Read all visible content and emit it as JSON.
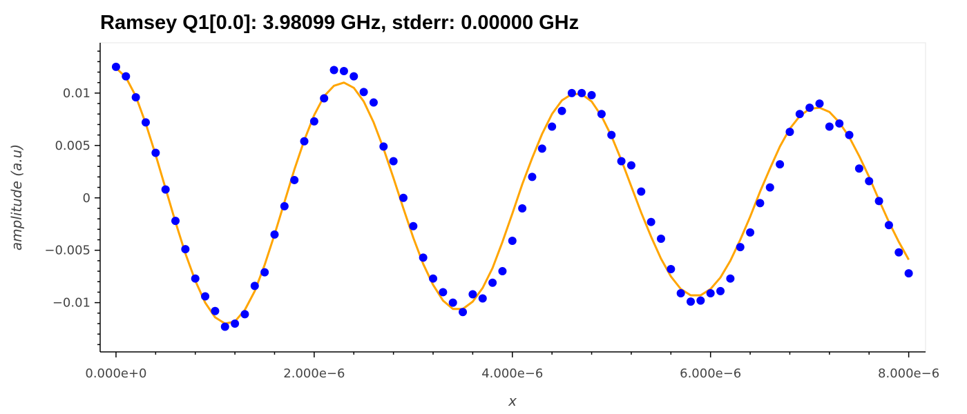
{
  "chart_data": {
    "type": "scatter",
    "title": "Ramsey Q1[0.0]: 3.98099 GHz, stderr: 0.00000 GHz",
    "xlabel": "x",
    "ylabel": "amplitude (a.u)",
    "xlim": [
      -1.6e-07,
      8.17e-06
    ],
    "ylim": [
      -0.0147,
      0.0148
    ],
    "x_ticks": [
      0,
      2e-06,
      4e-06,
      6e-06,
      8e-06
    ],
    "x_tick_labels": [
      "0.000e+0",
      "2.000e−6",
      "4.000e−6",
      "6.000e−6",
      "8.000e−6"
    ],
    "y_ticks": [
      0.01,
      0.005,
      0,
      -0.005,
      -0.01
    ],
    "y_tick_labels": [
      "0.01",
      "0.005",
      "0",
      "−0.005",
      "−0.01"
    ],
    "grid": false,
    "colors": {
      "points": "#0000ff",
      "fit": "#ffa500"
    },
    "series": [
      {
        "kind": "points",
        "x": [
          0,
          1e-07,
          2e-07,
          3e-07,
          4e-07,
          5e-07,
          6e-07,
          7e-07,
          8e-07,
          9e-07,
          1e-06,
          1.1e-06,
          1.2e-06,
          1.3e-06,
          1.4e-06,
          1.5e-06,
          1.6e-06,
          1.7e-06,
          1.8e-06,
          1.9e-06,
          2e-06,
          2.1e-06,
          2.2e-06,
          2.3e-06,
          2.4e-06,
          2.5e-06,
          2.6e-06,
          2.7e-06,
          2.8e-06,
          2.9e-06,
          3e-06,
          3.1e-06,
          3.2e-06,
          3.3e-06,
          3.4e-06,
          3.5e-06,
          3.6e-06,
          3.7e-06,
          3.8e-06,
          3.9e-06,
          4e-06,
          4.1e-06,
          4.2e-06,
          4.3e-06,
          4.4e-06,
          4.5e-06,
          4.6e-06,
          4.7e-06,
          4.8e-06,
          4.9e-06,
          5e-06,
          5.1e-06,
          5.2e-06,
          5.3e-06,
          5.4e-06,
          5.5e-06,
          5.6e-06,
          5.7e-06,
          5.8e-06,
          5.9e-06,
          6e-06,
          6.1e-06,
          6.2e-06,
          6.3e-06,
          6.4e-06,
          6.5e-06,
          6.6e-06,
          6.7e-06,
          6.8e-06,
          6.9e-06,
          7e-06,
          7.1e-06,
          7.2e-06,
          7.3e-06,
          7.4e-06,
          7.5e-06,
          7.6e-06,
          7.7e-06,
          7.8e-06,
          7.9e-06,
          8e-06
        ],
        "y": [
          0.0125,
          0.0116,
          0.0096,
          0.0072,
          0.0043,
          0.0008,
          -0.0022,
          -0.0049,
          -0.0077,
          -0.0094,
          -0.0108,
          -0.0123,
          -0.012,
          -0.0111,
          -0.0084,
          -0.0071,
          -0.0035,
          -0.0008,
          0.0017,
          0.0054,
          0.0073,
          0.0095,
          0.0122,
          0.0121,
          0.0116,
          0.0101,
          0.0091,
          0.0049,
          0.0035,
          0.0,
          -0.0027,
          -0.0057,
          -0.0077,
          -0.009,
          -0.01,
          -0.0109,
          -0.0092,
          -0.0096,
          -0.0081,
          -0.007,
          -0.0041,
          -0.001,
          0.002,
          0.0047,
          0.0068,
          0.0083,
          0.01,
          0.01,
          0.0098,
          0.008,
          0.006,
          0.0035,
          0.0031,
          0.0006,
          -0.0023,
          -0.0039,
          -0.0068,
          -0.0091,
          -0.0099,
          -0.0098,
          -0.0091,
          -0.0089,
          -0.0077,
          -0.0047,
          -0.0033,
          -0.0005,
          0.001,
          0.0032,
          0.0063,
          0.008,
          0.0086,
          0.009,
          0.0068,
          0.0071,
          0.006,
          0.0028,
          0.0016,
          -0.0003,
          -0.0026,
          -0.0052,
          -0.0072
        ]
      },
      {
        "kind": "fit",
        "x": [
          0,
          1e-07,
          2e-07,
          3e-07,
          4e-07,
          5e-07,
          6e-07,
          7e-07,
          8e-07,
          9e-07,
          1e-06,
          1.1e-06,
          1.2e-06,
          1.3e-06,
          1.4e-06,
          1.5e-06,
          1.6e-06,
          1.7e-06,
          1.8e-06,
          1.9e-06,
          2e-06,
          2.1e-06,
          2.2e-06,
          2.3e-06,
          2.4e-06,
          2.5e-06,
          2.6e-06,
          2.7e-06,
          2.8e-06,
          2.9e-06,
          3e-06,
          3.1e-06,
          3.2e-06,
          3.3e-06,
          3.4e-06,
          3.5e-06,
          3.6e-06,
          3.7e-06,
          3.8e-06,
          3.9e-06,
          4e-06,
          4.1e-06,
          4.2e-06,
          4.3e-06,
          4.4e-06,
          4.5e-06,
          4.6e-06,
          4.7e-06,
          4.8e-06,
          4.9e-06,
          5e-06,
          5.1e-06,
          5.2e-06,
          5.3e-06,
          5.4e-06,
          5.5e-06,
          5.6e-06,
          5.7e-06,
          5.8e-06,
          5.9e-06,
          6e-06,
          6.1e-06,
          6.2e-06,
          6.3e-06,
          6.4e-06,
          6.5e-06,
          6.6e-06,
          6.7e-06,
          6.8e-06,
          6.9e-06,
          7e-06,
          7.1e-06,
          7.2e-06,
          7.3e-06,
          7.4e-06,
          7.5e-06,
          7.6e-06,
          7.7e-06,
          7.8e-06,
          7.9e-06,
          8e-06
        ],
        "y": [
          0.0124,
          0.0115,
          0.0097,
          0.0071,
          0.0041,
          0.0009,
          -0.0023,
          -0.0053,
          -0.0079,
          -0.01,
          -0.0114,
          -0.012,
          -0.0118,
          -0.0107,
          -0.0089,
          -0.0064,
          -0.0035,
          -0.0004,
          0.0027,
          0.0055,
          0.0079,
          0.0097,
          0.0107,
          0.011,
          0.0105,
          0.0092,
          0.0072,
          0.0047,
          0.0019,
          -0.001,
          -0.0038,
          -0.0063,
          -0.0083,
          -0.0098,
          -0.0106,
          -0.0106,
          -0.0099,
          -0.0086,
          -0.0067,
          -0.0042,
          -0.0015,
          0.0013,
          0.0038,
          0.0061,
          0.008,
          0.0093,
          0.0099,
          0.0099,
          0.0092,
          0.0078,
          0.0059,
          0.0036,
          0.0011,
          -0.0014,
          -0.0037,
          -0.0058,
          -0.0075,
          -0.0087,
          -0.0093,
          -0.0093,
          -0.0087,
          -0.0076,
          -0.006,
          -0.004,
          -0.0018,
          0.0006,
          0.0028,
          0.0049,
          0.0066,
          0.0078,
          0.0085,
          0.0086,
          0.0082,
          0.0072,
          0.0058,
          0.004,
          0.002,
          -0.0002,
          -0.0023,
          -0.0042,
          -0.0059
        ]
      }
    ]
  }
}
